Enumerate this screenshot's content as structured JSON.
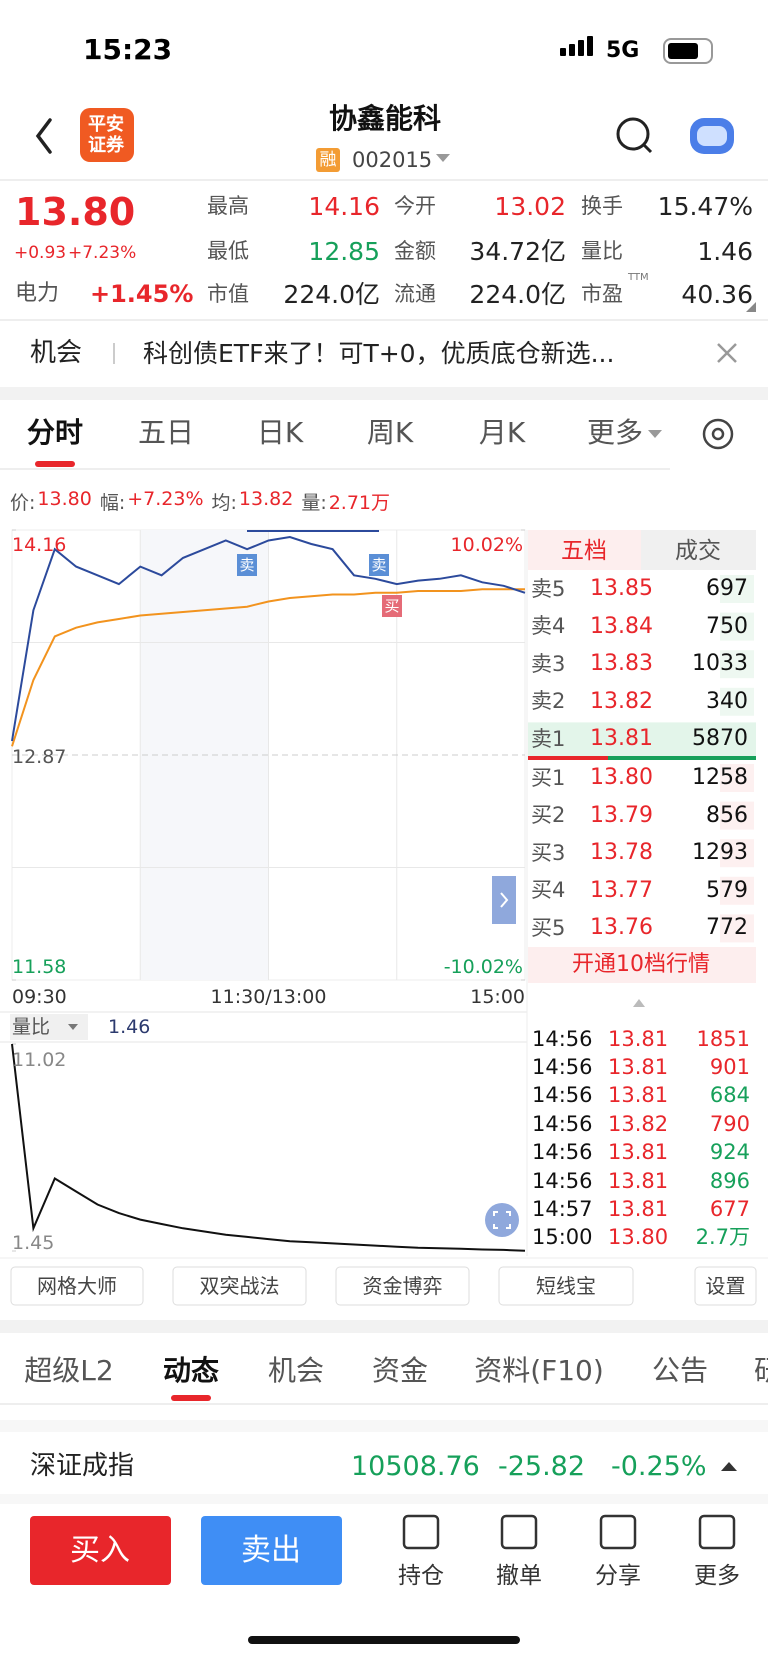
{
  "status": {
    "time": "15:23",
    "network": "5G"
  },
  "header": {
    "logo": [
      "平安",
      "证券"
    ],
    "title": "协鑫能科",
    "badge": "融",
    "code": "002015"
  },
  "quote": {
    "price": "13.80",
    "change": "+0.93",
    "change_pct": "+7.23%",
    "sector": "电力",
    "sector_change": "+1.45%",
    "stats": [
      {
        "label": "最高",
        "value": "14.16",
        "color": "#e8262b"
      },
      {
        "label": "今开",
        "value": "13.02",
        "color": "#e8262b"
      },
      {
        "label": "换手",
        "value": "15.47%",
        "color": "#222222"
      },
      {
        "label": "最低",
        "value": "12.85",
        "color": "#16a05a"
      },
      {
        "label": "金额",
        "value": "34.72亿",
        "color": "#222222"
      },
      {
        "label": "量比",
        "value": "1.46",
        "color": "#222222"
      },
      {
        "label": "市值",
        "value": "224.0亿",
        "color": "#222222"
      },
      {
        "label": "流通",
        "value": "224.0亿",
        "color": "#222222"
      },
      {
        "label": "市盈",
        "value": "40.36",
        "color": "#222222",
        "sup": "TTM"
      }
    ]
  },
  "banner": {
    "tag": "机会",
    "text": "科创债ETF来了！可T+0，优质底仓新选..."
  },
  "chart_tabs": [
    "分时",
    "五日",
    "日K",
    "周K",
    "月K",
    "更多"
  ],
  "chart_info": [
    {
      "label": "价:",
      "value": "13.80"
    },
    {
      "label": "幅:",
      "value": "+7.23%"
    },
    {
      "label": "均:",
      "value": "13.82"
    },
    {
      "label": "量:",
      "value": "2.71万"
    }
  ],
  "chart_data": [
    {
      "type": "line",
      "ylim": [
        11.58,
        14.16
      ],
      "yticks": [
        11.58,
        12.87,
        14.16
      ],
      "y2lim": [
        -10.02,
        10.02
      ],
      "y2ticks": [
        {
          "value": -10.02,
          "label": "-10.02%"
        },
        {
          "value": 10.02,
          "label": "10.02%"
        }
      ],
      "x_labels": [
        "09:30",
        "11:30/13:00",
        "15:00"
      ],
      "grid": true,
      "series": [
        {
          "color": "#2c4a9c",
          "values": [
            12.95,
            13.7,
            14.05,
            13.95,
            13.9,
            13.85,
            13.95,
            13.9,
            14.0,
            14.05,
            14.1,
            14.05,
            14.1,
            14.12,
            14.08,
            14.05,
            13.9,
            13.88,
            13.85,
            13.87,
            13.88,
            13.9,
            13.86,
            13.84,
            13.8
          ]
        },
        {
          "color": "#f2931e",
          "values": [
            12.92,
            13.3,
            13.55,
            13.6,
            13.63,
            13.65,
            13.67,
            13.68,
            13.69,
            13.7,
            13.71,
            13.72,
            13.75,
            13.77,
            13.78,
            13.79,
            13.79,
            13.8,
            13.8,
            13.81,
            13.81,
            13.81,
            13.82,
            13.82,
            13.82
          ]
        }
      ],
      "annotations": [
        "卖",
        "卖",
        "买"
      ]
    },
    {
      "type": "line",
      "title": "量比",
      "value": "1.46",
      "ylim": [
        1.45,
        11.02
      ],
      "yticks": [
        1.45,
        11.02
      ],
      "series": [
        {
          "color": "#111111",
          "values": [
            11.02,
            2.5,
            4.8,
            4.2,
            3.6,
            3.2,
            2.9,
            2.7,
            2.5,
            2.35,
            2.2,
            2.1,
            2.0,
            1.9,
            1.85,
            1.8,
            1.75,
            1.7,
            1.65,
            1.6,
            1.58,
            1.55,
            1.52,
            1.5,
            1.46
          ]
        }
      ]
    }
  ],
  "order_book": {
    "tabs": [
      "五档",
      "成交"
    ],
    "asks": [
      {
        "label": "卖5",
        "price": "13.85",
        "volume": "697"
      },
      {
        "label": "卖4",
        "price": "13.84",
        "volume": "750"
      },
      {
        "label": "卖3",
        "price": "13.83",
        "volume": "1033"
      },
      {
        "label": "卖2",
        "price": "13.82",
        "volume": "340"
      },
      {
        "label": "卖1",
        "price": "13.81",
        "volume": "5870"
      }
    ],
    "bids": [
      {
        "label": "买1",
        "price": "13.80",
        "volume": "1258"
      },
      {
        "label": "买2",
        "price": "13.79",
        "volume": "856"
      },
      {
        "label": "买3",
        "price": "13.78",
        "volume": "1293"
      },
      {
        "label": "买4",
        "price": "13.77",
        "volume": "579"
      },
      {
        "label": "买5",
        "price": "13.76",
        "volume": "772"
      }
    ],
    "upgrade": "开通10档行情"
  },
  "trades": [
    {
      "time": "14:56",
      "price": "13.81",
      "volume": "1851",
      "color": "#e8262b"
    },
    {
      "time": "14:56",
      "price": "13.81",
      "volume": "901",
      "color": "#e8262b"
    },
    {
      "time": "14:56",
      "price": "13.81",
      "volume": "684",
      "color": "#16a05a"
    },
    {
      "time": "14:56",
      "price": "13.82",
      "volume": "790",
      "color": "#e8262b"
    },
    {
      "time": "14:56",
      "price": "13.81",
      "volume": "924",
      "color": "#16a05a"
    },
    {
      "time": "14:56",
      "price": "13.81",
      "volume": "896",
      "color": "#16a05a"
    },
    {
      "time": "14:57",
      "price": "13.81",
      "volume": "677",
      "color": "#e8262b"
    },
    {
      "time": "15:00",
      "price": "13.80",
      "volume": "2.7万",
      "color": "#16a05a"
    }
  ],
  "tools": [
    "网格大师",
    "双突战法",
    "资金博弈",
    "短线宝",
    "设置"
  ],
  "section_tabs": [
    "超级L2",
    "动态",
    "机会",
    "资金",
    "资料(F10)",
    "公告",
    "研"
  ],
  "index": {
    "name": "深证成指",
    "value": "10508.76",
    "change": "-25.82",
    "change_pct": "-0.25%"
  },
  "actions": {
    "buy": "买入",
    "sell": "卖出",
    "items": [
      "持仓",
      "撤单",
      "分享",
      "更多"
    ]
  }
}
